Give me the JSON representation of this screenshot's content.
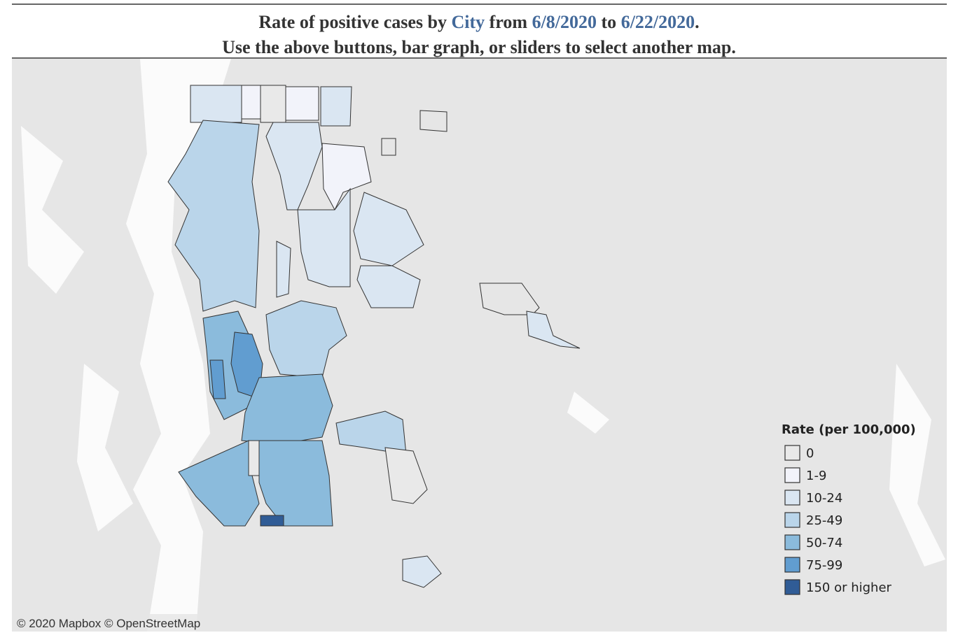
{
  "header": {
    "title_parts": [
      "Rate of positive cases by ",
      "City",
      " from ",
      "6/8/2020",
      " to ",
      "6/22/2020",
      "."
    ],
    "highlight": [
      1,
      3,
      5
    ],
    "highlight_color": "#43699a",
    "subtitle": "Use the above buttons, bar graph, or sliders to select another map."
  },
  "legend": {
    "title": "Rate (per 100,000)",
    "items": [
      {
        "label": "0",
        "color": "#e9e9e9"
      },
      {
        "label": "1-9",
        "color": "#f2f3fa"
      },
      {
        "label": "10-24",
        "color": "#dae6f2"
      },
      {
        "label": "25-49",
        "color": "#bad5ea"
      },
      {
        "label": "50-74",
        "color": "#8bbbdc"
      },
      {
        "label": "75-99",
        "color": "#619dd0"
      },
      {
        "label": "150 or higher",
        "color": "#305c96"
      }
    ]
  },
  "attribution": "© 2020 Mapbox © OpenStreetMap"
}
